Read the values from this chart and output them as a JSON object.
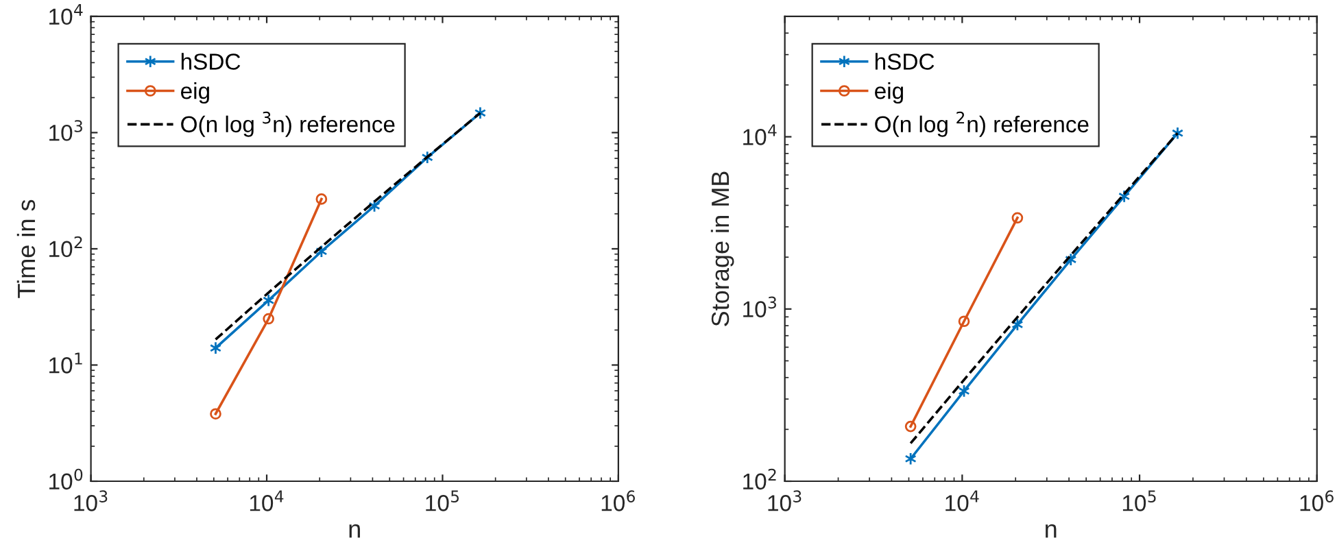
{
  "chart_data": [
    {
      "type": "line",
      "xlabel": "n",
      "ylabel": "Time in s",
      "log": "xy",
      "grid": false,
      "legend": "top left",
      "x": [
        5120,
        10240,
        20480,
        40960,
        81920,
        163840
      ],
      "xlim": [
        1000,
        1000000
      ],
      "xticks": [
        {
          "value": 1000,
          "label": "10$^{3}$"
        },
        {
          "value": 10000,
          "label": "10$^{4}$"
        },
        {
          "value": 100000,
          "label": "10$^{5}$"
        },
        {
          "value": 1000000,
          "label": "10$^{6}$"
        }
      ],
      "ylim": [
        1,
        10000
      ],
      "yticks": [
        {
          "value": 1,
          "label": "10$^{0}$"
        },
        {
          "value": 10,
          "label": "10$^{1}$"
        },
        {
          "value": 100,
          "label": "10$^{2}$"
        },
        {
          "value": 1000,
          "label": "10$^{3}$"
        },
        {
          "value": 10000,
          "label": "10$^{4}$"
        }
      ],
      "series": [
        {
          "name": "hSDC",
          "color": "#0072bd",
          "marker": "cross",
          "line_style": "solid",
          "values": [
            14,
            36,
            95,
            234,
            612,
            1476
          ]
        },
        {
          "name": "eig",
          "color": "#d95319",
          "marker": "circle",
          "line_style": "solid",
          "values": [
            3.8,
            25,
            268,
            null,
            null,
            null
          ]
        },
        {
          "name": "O(n log $^{3}$n) reference",
          "color": "#000000",
          "marker": "none",
          "line_style": "dashed",
          "values": [
            16.6,
            42,
            104,
            255,
            617,
            1476
          ]
        }
      ]
    },
    {
      "type": "line",
      "xlabel": "n",
      "ylabel": "Storage in MB",
      "log": "xy",
      "grid": false,
      "legend": "top left",
      "x": [
        5120,
        10240,
        20480,
        40960,
        81920,
        163840
      ],
      "xlim": [
        1000,
        1000000
      ],
      "xticks": [
        {
          "value": 1000,
          "label": "10$^{3}$"
        },
        {
          "value": 10000,
          "label": "10$^{4}$"
        },
        {
          "value": 100000,
          "label": "10$^{5}$"
        },
        {
          "value": 1000000,
          "label": "10$^{6}$"
        }
      ],
      "ylim": [
        100,
        50000
      ],
      "yticks": [
        {
          "value": 100,
          "label": "10$^{2}$"
        },
        {
          "value": 1000,
          "label": "10$^{3}$"
        },
        {
          "value": 10000,
          "label": "10$^{4}$"
        }
      ],
      "series": [
        {
          "name": "hSDC",
          "color": "#0072bd",
          "marker": "cross",
          "line_style": "solid",
          "values": [
            135,
            334,
            812,
            1937,
            4510,
            10500
          ]
        },
        {
          "name": "eig",
          "color": "#d95319",
          "marker": "circle",
          "line_style": "solid",
          "values": [
            208,
            848,
            3383,
            null,
            null,
            null
          ]
        },
        {
          "name": "O(n log $^{2}$n) reference",
          "color": "#000000",
          "marker": "none",
          "line_style": "dashed",
          "values": [
            166,
            388,
            897,
            2053,
            4661,
            10500
          ]
        }
      ]
    }
  ]
}
